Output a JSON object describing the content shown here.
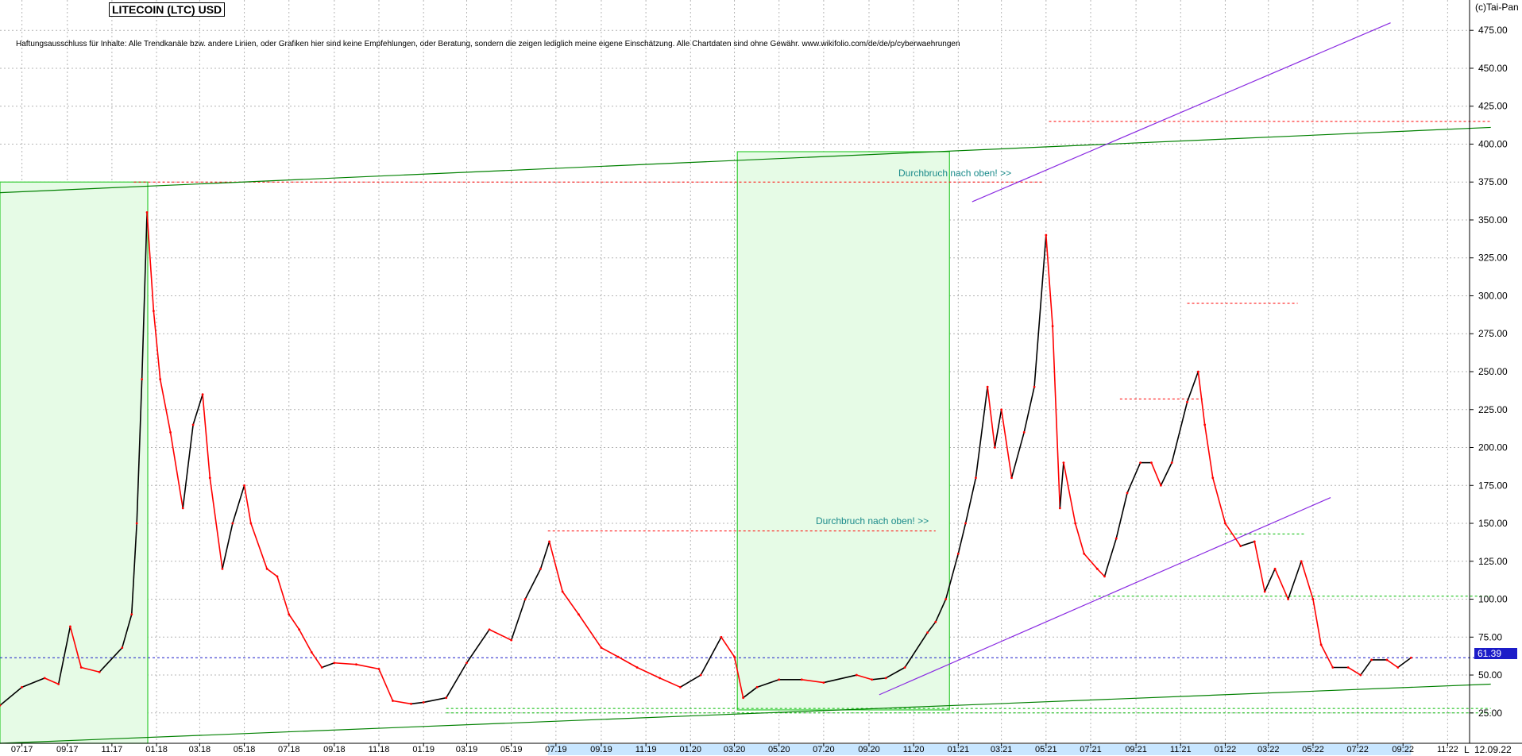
{
  "header": {
    "title": "LITECOIN (LTC) USD",
    "disclaimer": "Haftungsausschluss für Inhalte: Alle Trendkanäle bzw. andere Linien, oder Grafiken hier sind keine Empfehlungen, oder Beratung, sondern die zeigen lediglich meine eigene Einschätzung. Alle Chartdaten sind ohne Gewähr.  www.wikifolio.com/de/de/p/cyberwaehrungen",
    "copyright": "(c)Tai-Pan"
  },
  "annotations": {
    "breakout_1": "Durchbruch nach oben! >>",
    "breakout_2": "Durchbruch nach oben! >>"
  },
  "status": {
    "last_price": "61.39",
    "date": "12.09.22",
    "corner": "L"
  },
  "colors": {
    "up_candle": "#000000",
    "down_candle": "#ff0000",
    "channel_green": "#008000",
    "channel_purple": "#8a2be2",
    "zone_fill": "#e6fbe6",
    "zone_border": "#33cc33",
    "resistance_red": "#ff0000",
    "support_green": "#00bb00",
    "last_price_line": "#1c1cc8",
    "badge_bg": "#1c1cc8",
    "annotation_text": "#1a8a8a",
    "grid": "#b4b4b4",
    "axis_highlight": "#c8e6ff"
  },
  "chart_data": {
    "type": "line",
    "title": "LITECOIN (LTC) USD",
    "y_tick_labels": [
      "25.00",
      "50.00",
      "75.00",
      "100.00",
      "125.00",
      "150.00",
      "175.00",
      "200.00",
      "225.00",
      "250.00",
      "275.00",
      "300.00",
      "325.00",
      "350.00",
      "375.00",
      "400.00",
      "425.00",
      "450.00",
      "475.00"
    ],
    "x_tick_labels": [
      "07.17",
      "09.17",
      "11.17",
      "01.18",
      "03.18",
      "05.18",
      "07.18",
      "09.18",
      "11.18",
      "01.19",
      "03.19",
      "05.19",
      "07.19",
      "09.19",
      "11.19",
      "01.20",
      "03.20",
      "05.20",
      "07.20",
      "09.20",
      "11.20",
      "01:21",
      "03:21",
      "05:21",
      "07:21",
      "09:21",
      "11:21",
      "01:22",
      "03:22",
      "05:22",
      "07:22",
      "09:22",
      "11:22"
    ],
    "x_range": [
      "2017-06",
      "2022-12"
    ],
    "ylim": [
      5,
      495
    ],
    "grid": true,
    "last_value": 61.39,
    "series": [
      {
        "x": [
          "2017-06-01",
          "2017-07-01",
          "2017-08-01",
          "2017-08-20",
          "2017-09-05",
          "2017-09-20",
          "2017-10-15",
          "2017-11-15",
          "2017-11-28",
          "2017-12-05",
          "2017-12-12",
          "2017-12-19",
          "2017-12-28",
          "2018-01-06",
          "2018-01-20",
          "2018-02-06",
          "2018-02-20",
          "2018-03-05",
          "2018-03-15",
          "2018-04-01",
          "2018-04-15",
          "2018-05-01",
          "2018-05-10",
          "2018-06-01",
          "2018-06-15",
          "2018-07-01",
          "2018-07-15",
          "2018-08-01",
          "2018-08-15",
          "2018-09-01",
          "2018-10-01",
          "2018-11-01",
          "2018-11-20",
          "2018-12-15",
          "2019-01-01",
          "2019-02-01",
          "2019-03-01",
          "2019-04-01",
          "2019-05-01",
          "2019-05-20",
          "2019-06-10",
          "2019-06-22",
          "2019-07-10",
          "2019-08-01",
          "2019-09-01",
          "2019-09-24",
          "2019-10-20",
          "2019-11-20",
          "2019-12-18",
          "2020-01-15",
          "2020-02-12",
          "2020-03-01",
          "2020-03-13",
          "2020-04-01",
          "2020-05-01",
          "2020-06-01",
          "2020-07-01",
          "2020-08-15",
          "2020-09-05",
          "2020-09-24",
          "2020-10-20",
          "2020-11-20",
          "2020-12-01",
          "2020-12-15",
          "2021-01-01",
          "2021-01-11",
          "2021-01-25",
          "2021-02-10",
          "2021-02-20",
          "2021-03-01",
          "2021-03-15",
          "2021-04-01",
          "2021-04-15",
          "2021-05-01",
          "2021-05-10",
          "2021-05-20",
          "2021-05-25",
          "2021-06-10",
          "2021-06-22",
          "2021-07-10",
          "2021-07-20",
          "2021-08-05",
          "2021-08-20",
          "2021-09-07",
          "2021-09-22",
          "2021-10-05",
          "2021-10-20",
          "2021-11-10",
          "2021-11-25",
          "2021-12-04",
          "2021-12-15",
          "2022-01-01",
          "2022-01-22",
          "2022-02-10",
          "2022-02-24",
          "2022-03-10",
          "2022-03-28",
          "2022-04-15",
          "2022-05-01",
          "2022-05-12",
          "2022-05-28",
          "2022-06-18",
          "2022-07-05",
          "2022-07-20",
          "2022-08-10",
          "2022-08-25",
          "2022-09-12"
        ],
        "y": [
          30,
          42,
          48,
          44,
          82,
          55,
          52,
          68,
          90,
          150,
          245,
          355,
          290,
          245,
          210,
          160,
          215,
          235,
          180,
          120,
          150,
          175,
          150,
          120,
          115,
          90,
          80,
          65,
          55,
          58,
          57,
          54,
          33,
          31,
          32,
          35,
          58,
          80,
          73,
          100,
          120,
          138,
          105,
          90,
          68,
          62,
          55,
          48,
          42,
          50,
          75,
          62,
          35,
          42,
          47,
          47,
          45,
          50,
          47,
          48,
          55,
          78,
          85,
          100,
          130,
          150,
          180,
          240,
          200,
          225,
          180,
          210,
          240,
          340,
          280,
          160,
          190,
          150,
          130,
          120,
          115,
          140,
          170,
          190,
          190,
          175,
          190,
          230,
          250,
          215,
          180,
          150,
          135,
          138,
          105,
          120,
          100,
          125,
          100,
          70,
          55,
          55,
          50,
          60,
          60,
          55,
          61.39
        ]
      }
    ],
    "levels": [
      {
        "value": 415,
        "from": "2021-05-05",
        "to": "2022-12-30"
      },
      {
        "value": 375,
        "from": "2017-12-01",
        "to": "2021-04-28"
      },
      {
        "value": 295,
        "from": "2021-11-10",
        "to": "2022-04-10"
      },
      {
        "value": 232,
        "from": "2021-08-10",
        "to": "2021-12-01"
      },
      {
        "value": 145,
        "from": "2019-06-20",
        "to": "2020-12-01"
      },
      {
        "value": 143,
        "from": "2022-01-01",
        "to": "2022-04-20"
      },
      {
        "value": 102,
        "from": "2021-07-05",
        "to": "2022-12-30"
      },
      {
        "value": 61.39,
        "from": "2017-06-01",
        "to": "2022-12-30"
      },
      {
        "value": 28,
        "from": "2019-02-01",
        "to": "2022-12-30"
      },
      {
        "value": 25,
        "from": "2019-02-01",
        "to": "2022-12-30"
      }
    ],
    "trendlines": [
      {
        "kind": "channel_top",
        "from": [
          "2017-06-01",
          368
        ],
        "to": [
          "2022-12-30",
          411
        ]
      },
      {
        "kind": "channel_bottom",
        "from": [
          "2017-06-01",
          5
        ],
        "to": [
          "2022-12-30",
          44
        ]
      },
      {
        "kind": "purple_upper",
        "from": [
          "2021-01-20",
          362
        ],
        "to": [
          "2022-08-15",
          480
        ]
      },
      {
        "kind": "purple_lower",
        "from": [
          "2020-09-15",
          37
        ],
        "to": [
          "2022-05-25",
          167
        ]
      }
    ],
    "zones": [
      {
        "from": "2017-06-01",
        "to": "2017-12-20",
        "top": 375,
        "bottom": 5
      },
      {
        "from": "2020-03-05",
        "to": "2020-12-20",
        "top": 395,
        "bottom": 27
      }
    ]
  }
}
